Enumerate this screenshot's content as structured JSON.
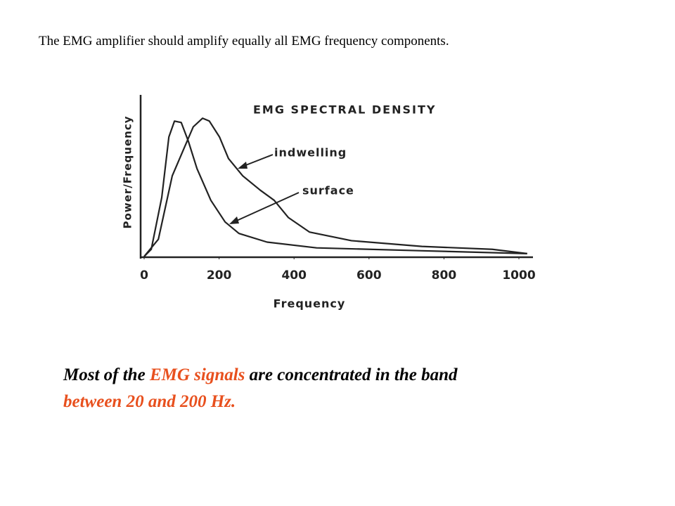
{
  "header": "The EMG amplifier should amplify equally all EMG frequency components.",
  "caption": [
    "Most of the ",
    "EMG signals",
    " are concentrated in the band",
    "between 20 and 200 Hz."
  ],
  "chart_data": {
    "type": "line",
    "title": "EMG SPECTRAL DENSITY",
    "xlabel": "Frequency",
    "ylabel": "Power/Frequency",
    "xlim": [
      0,
      1045
    ],
    "ylim": [
      0,
      1
    ],
    "xticks": [
      0,
      200,
      400,
      600,
      800,
      1000
    ],
    "color": "#222",
    "series": [
      {
        "name": "indwelling",
        "color": "#222",
        "x": [
          0,
          38,
          75,
          103,
          131,
          156,
          174,
          201,
          225,
          263,
          310,
          347,
          385,
          441,
          553,
          741,
          929,
          1022
        ],
        "values": [
          0,
          0.12,
          0.56,
          0.73,
          0.9,
          0.96,
          0.94,
          0.83,
          0.68,
          0.56,
          0.46,
          0.39,
          0.27,
          0.17,
          0.11,
          0.07,
          0.05,
          0.02
        ]
      },
      {
        "name": "surface",
        "color": "#222",
        "x": [
          0,
          19,
          47,
          66,
          81,
          99,
          118,
          141,
          178,
          216,
          253,
          328,
          460,
          741,
          1022
        ],
        "values": [
          0,
          0.05,
          0.41,
          0.83,
          0.94,
          0.93,
          0.8,
          0.61,
          0.39,
          0.24,
          0.16,
          0.1,
          0.06,
          0.04,
          0.02
        ]
      }
    ]
  }
}
